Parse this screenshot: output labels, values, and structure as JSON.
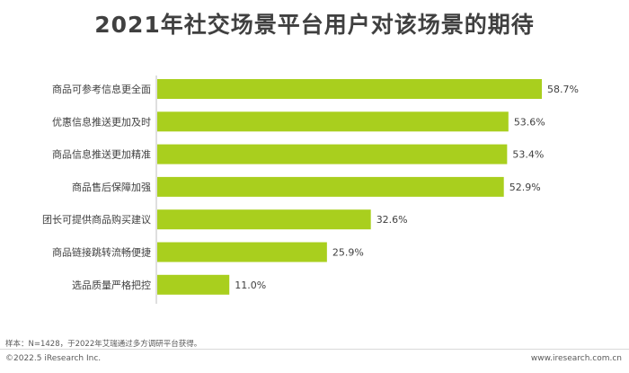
{
  "chart_data": {
    "type": "bar",
    "orientation": "horizontal",
    "title": "2021年社交场景平台用户对该场景的期待",
    "categories": [
      "商品可参考信息更全面",
      "优惠信息推送更加及时",
      "商品信息推送更加精准",
      "商品售后保障加强",
      "团长可提供商品购买建议",
      "商品链接跳转流畅便捷",
      "选品质量严格把控"
    ],
    "values": [
      58.7,
      53.6,
      53.4,
      52.9,
      32.6,
      25.9,
      11.0
    ],
    "value_labels": [
      "58.7%",
      "53.6%",
      "53.4%",
      "52.9%",
      "32.6%",
      "25.9%",
      "11.0%"
    ],
    "xlim": [
      0,
      58.7
    ],
    "bar_color": "#a9cf1e",
    "grid": false,
    "legend": "none"
  },
  "footer": {
    "note": "样本：N=1428，于2022年艾瑞通过多方调研平台获得。",
    "copyright": "©2022.5 iResearch Inc.",
    "website": "www.iresearch.com.cn"
  }
}
